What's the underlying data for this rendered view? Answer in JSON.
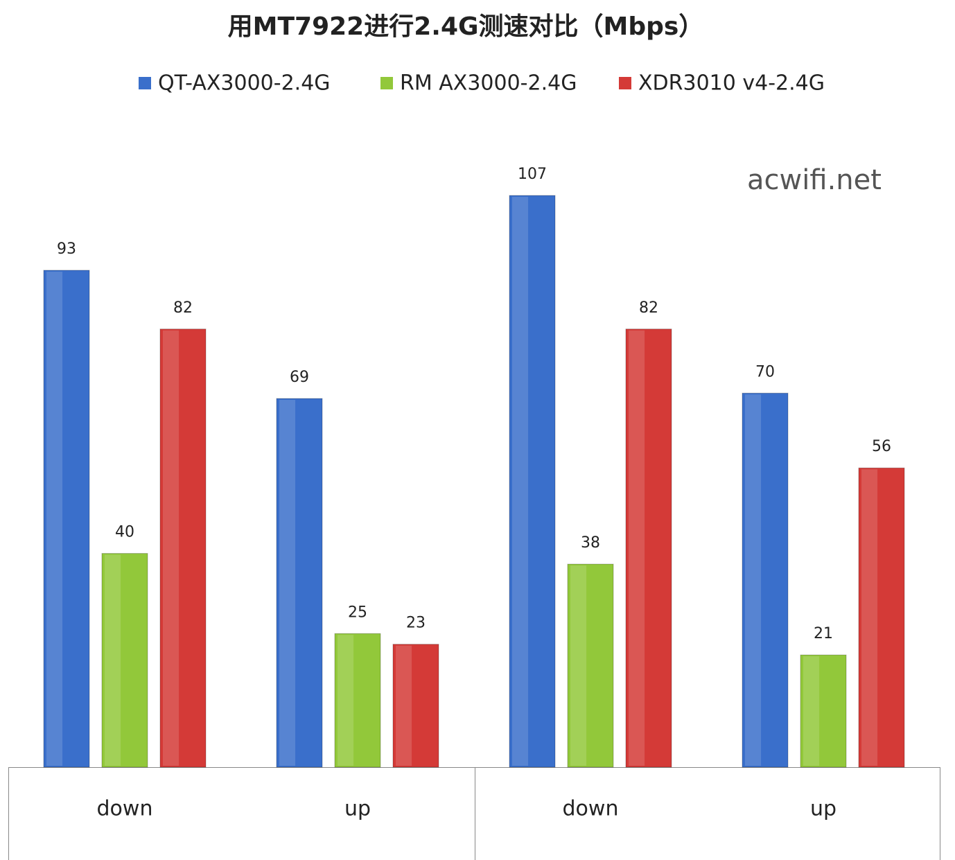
{
  "chart_data": {
    "type": "bar",
    "title": "用MT7922进行2.4G测速对比（Mbps）",
    "annotation": "acwifi.net",
    "categories": [
      "down",
      "up",
      "down",
      "up"
    ],
    "series": [
      {
        "name": "QT-AX3000-2.4G",
        "color": "#3a6fcb",
        "values": [
          93,
          69,
          107,
          70
        ]
      },
      {
        "name": "RM AX3000-2.4G",
        "color": "#92c83a",
        "values": [
          40,
          25,
          38,
          21
        ]
      },
      {
        "name": "XDR3010 v4-2.4G",
        "color": "#d43a37",
        "values": [
          82,
          23,
          82,
          56
        ]
      }
    ],
    "legend": "top"
  }
}
